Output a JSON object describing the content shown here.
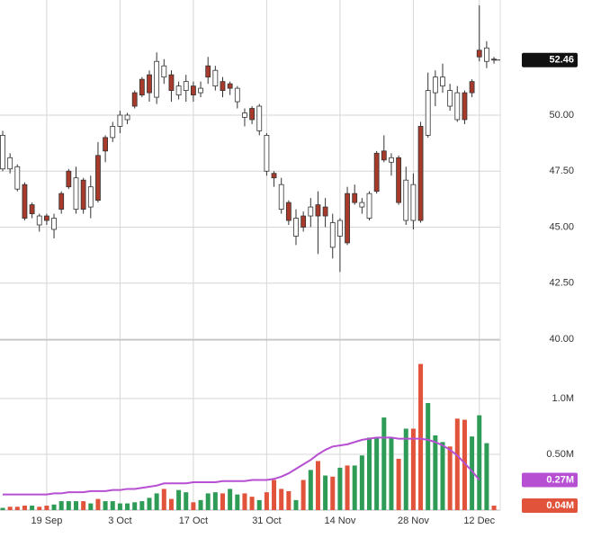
{
  "chart_data": {
    "type": "candlestick",
    "categories": [
      null,
      null,
      null,
      null,
      null,
      null,
      "19 Sep",
      null,
      null,
      null,
      null,
      null,
      null,
      null,
      null,
      null,
      "3 Oct",
      null,
      null,
      null,
      null,
      null,
      null,
      null,
      null,
      null,
      "17 Oct",
      null,
      null,
      null,
      null,
      null,
      null,
      null,
      null,
      null,
      "31 Oct",
      null,
      null,
      null,
      null,
      null,
      null,
      null,
      null,
      null,
      "14 Nov",
      null,
      null,
      null,
      null,
      null,
      null,
      null,
      null,
      null,
      "28 Nov",
      null,
      null,
      null,
      null,
      null,
      null,
      null,
      null,
      "12 Dec",
      null,
      null
    ],
    "open": [
      47.6,
      47.6,
      46.7,
      46.9,
      46.0,
      45.1,
      45.5,
      44.9,
      46.5,
      47.5,
      45.8,
      47.1,
      45.9,
      48.2,
      49.0,
      49.0,
      49.5,
      49.8,
      51.0,
      51.6,
      51.8,
      50.8,
      51.7,
      51.8,
      50.9,
      51.1,
      51.3,
      51.0,
      52.2,
      51.3,
      51.5,
      51.4,
      50.6,
      49.9,
      50.3,
      49.3,
      47.5,
      47.4,
      45.8,
      46.1,
      44.6,
      45.5,
      45.5,
      46.0,
      45.9,
      44.1,
      44.6,
      46.5,
      46.5,
      45.9,
      45.4,
      48.3,
      48.4,
      47.9,
      48.1,
      45.3,
      45.3,
      49.5,
      49.1,
      51.0,
      51.3,
      50.4,
      49.8,
      51.0,
      51.5,
      52.9,
      52.4,
      52.5
    ],
    "high": [
      49.3,
      48.3,
      47.8,
      47.0,
      46.1,
      45.6,
      45.6,
      45.6,
      46.6,
      47.6,
      47.7,
      47.2,
      47.3,
      48.8,
      49.1,
      49.7,
      50.2,
      50.1,
      51.1,
      51.7,
      52.0,
      52.8,
      52.5,
      52.0,
      51.5,
      51.8,
      51.5,
      51.5,
      52.6,
      52.2,
      51.7,
      51.5,
      51.3,
      50.3,
      50.4,
      50.5,
      49.2,
      47.5,
      47.2,
      46.2,
      45.8,
      45.7,
      46.3,
      46.6,
      46.3,
      45.6,
      45.4,
      46.8,
      46.9,
      46.3,
      46.6,
      48.4,
      49.1,
      48.3,
      48.2,
      47.7,
      47.4,
      49.7,
      51.9,
      52.0,
      52.3,
      51.4,
      51.3,
      51.1,
      51.6,
      54.9,
      53.3,
      52.6
    ],
    "low": [
      47.5,
      47.4,
      46.6,
      45.3,
      45.4,
      44.8,
      45.1,
      44.5,
      45.6,
      46.7,
      45.6,
      45.6,
      45.4,
      46.1,
      47.9,
      48.8,
      49.2,
      49.6,
      50.3,
      50.8,
      50.6,
      50.5,
      51.4,
      50.6,
      50.7,
      50.6,
      50.6,
      50.8,
      51.4,
      51.1,
      50.8,
      50.9,
      50.3,
      49.5,
      49.6,
      49.1,
      47.3,
      46.8,
      45.6,
      45.1,
      44.2,
      44.8,
      45.0,
      43.8,
      45.0,
      43.6,
      43.0,
      44.2,
      46.0,
      45.6,
      45.3,
      46.5,
      47.9,
      47.3,
      46.0,
      45.1,
      44.9,
      45.2,
      49.0,
      50.4,
      51.0,
      50.2,
      49.7,
      49.6,
      50.8,
      52.4,
      52.1,
      52.3
    ],
    "close": [
      49.1,
      48.1,
      47.7,
      45.4,
      45.6,
      45.5,
      45.3,
      45.4,
      45.8,
      46.8,
      47.2,
      45.8,
      46.8,
      46.2,
      48.4,
      49.5,
      50.0,
      50.0,
      50.4,
      50.9,
      51.0,
      52.4,
      52.2,
      51.1,
      51.3,
      51.5,
      50.9,
      51.2,
      51.7,
      52.0,
      51.1,
      51.2,
      51.2,
      50.1,
      49.8,
      50.4,
      49.1,
      47.2,
      46.9,
      45.3,
      45.4,
      45.0,
      45.9,
      45.5,
      45.5,
      45.2,
      45.3,
      44.3,
      46.1,
      46.1,
      46.5,
      46.6,
      48.0,
      48.1,
      46.1,
      47.1,
      46.9,
      45.3,
      51.1,
      51.7,
      51.7,
      51.1,
      51.0,
      49.8,
      51.0,
      52.6,
      53.0,
      52.46
    ],
    "up_color": "#ffffff",
    "down_color": "#a83a2c",
    "outline": "#333333",
    "ylim": [
      40,
      55.14
    ],
    "yticks": [
      {
        "value": 40,
        "label": "40.00"
      },
      {
        "value": 42.5,
        "label": "42.50"
      },
      {
        "value": 45,
        "label": "45.00"
      },
      {
        "value": 47.5,
        "label": "47.50"
      },
      {
        "value": 50,
        "label": "50.00"
      }
    ],
    "last_price": 52.46,
    "volume": {
      "values": [
        0.02,
        0.03,
        0.03,
        0.04,
        0.04,
        0.03,
        0.04,
        0.05,
        0.08,
        0.08,
        0.08,
        0.08,
        0.06,
        0.1,
        0.08,
        0.08,
        0.06,
        0.06,
        0.07,
        0.08,
        0.11,
        0.15,
        0.19,
        0.1,
        0.18,
        0.16,
        0.07,
        0.09,
        0.15,
        0.16,
        0.15,
        0.19,
        0.14,
        0.15,
        0.12,
        0.09,
        0.16,
        0.27,
        0.19,
        0.17,
        0.09,
        0.27,
        0.36,
        0.44,
        0.31,
        0.3,
        0.38,
        0.4,
        0.4,
        0.49,
        0.65,
        0.65,
        0.83,
        0.65,
        0.46,
        0.73,
        0.73,
        1.31,
        0.96,
        0.67,
        0.61,
        0.57,
        0.82,
        0.81,
        0.66,
        0.85,
        0.6,
        0.04
      ],
      "up_color": "#2e9b57",
      "down_color": "#e2533b",
      "ylim": [
        0,
        1.508
      ],
      "yticks": [
        {
          "value": 0.5,
          "label": "0.50M"
        },
        {
          "value": 1,
          "label": "1.0M"
        }
      ],
      "last_label": {
        "value": 0.04,
        "label": "0.04M"
      },
      "average": {
        "color": "#b74fd3",
        "values": [
          0.14,
          0.14,
          0.14,
          0.14,
          0.14,
          0.14,
          0.14,
          0.15,
          0.15,
          0.16,
          0.16,
          0.16,
          0.17,
          0.17,
          0.17,
          0.18,
          0.18,
          0.19,
          0.19,
          0.2,
          0.21,
          0.22,
          0.24,
          0.24,
          0.24,
          0.24,
          0.25,
          0.25,
          0.25,
          0.25,
          0.26,
          0.26,
          0.26,
          0.26,
          0.27,
          0.27,
          0.27,
          0.28,
          0.3,
          0.33,
          0.37,
          0.41,
          0.45,
          0.5,
          0.54,
          0.57,
          0.58,
          0.59,
          0.61,
          0.63,
          0.64,
          0.65,
          0.65,
          0.65,
          0.64,
          0.64,
          0.64,
          0.64,
          0.63,
          0.61,
          0.58,
          0.54,
          0.49,
          0.42,
          0.35,
          0.27,
          null,
          null
        ],
        "last_label": {
          "value": 0.27,
          "label": "0.27M"
        }
      }
    }
  }
}
